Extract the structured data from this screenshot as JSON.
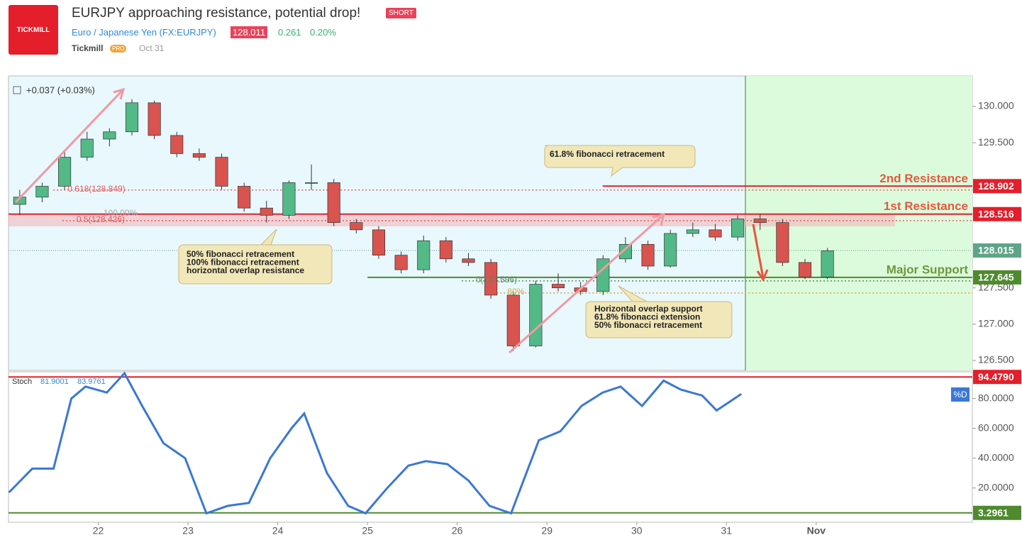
{
  "header": {
    "logo": "TICKMILL",
    "title": "EURJPY approaching resistance, potential drop!",
    "badge": "SHORT",
    "symbol": "Euro / Japanese Yen (FX:EURJPY)",
    "price": "128.011",
    "change": "0.261",
    "change_pct": "0.20%",
    "author": "Tickmill",
    "author_badge": "PRO",
    "date": "Oct 31"
  },
  "chart_data": [
    {
      "type": "candlestick",
      "legend": "+0.037 (+0.03%)",
      "x": [
        0.125,
        0.375,
        0.625,
        0.875,
        1.125,
        1.375,
        1.625,
        1.875,
        2.125,
        2.375,
        2.625,
        2.875,
        3.125,
        3.375,
        3.625,
        3.875,
        4.125,
        4.375,
        4.625,
        4.875,
        5.125,
        5.375,
        5.625,
        5.875,
        6.125,
        6.375,
        6.625,
        6.875,
        7.125,
        7.375,
        7.625,
        7.875,
        8.125,
        8.375,
        8.625,
        8.875,
        9.125
      ],
      "open": [
        128.65,
        128.75,
        128.9,
        129.3,
        129.55,
        129.65,
        130.05,
        129.6,
        129.35,
        129.3,
        128.9,
        128.6,
        128.5,
        128.95,
        128.95,
        128.4,
        128.3,
        127.95,
        127.75,
        128.15,
        127.9,
        127.85,
        127.4,
        126.7,
        127.55,
        127.5,
        127.45,
        127.9,
        128.1,
        127.8,
        128.25,
        128.3,
        128.2,
        128.45,
        128.4,
        127.85,
        127.65
      ],
      "high": [
        128.85,
        128.95,
        129.4,
        129.65,
        129.7,
        130.1,
        130.08,
        129.65,
        129.42,
        129.35,
        128.95,
        128.7,
        128.98,
        129.2,
        129.0,
        128.45,
        128.35,
        128.0,
        128.22,
        128.2,
        127.98,
        127.9,
        127.45,
        127.6,
        127.7,
        127.58,
        127.95,
        128.2,
        128.15,
        128.3,
        128.4,
        128.38,
        128.5,
        128.52,
        128.45,
        127.9,
        128.05
      ],
      "low": [
        128.5,
        128.68,
        128.85,
        129.25,
        129.45,
        129.6,
        129.55,
        129.3,
        129.25,
        128.85,
        128.55,
        128.4,
        128.45,
        128.85,
        128.35,
        128.25,
        127.9,
        127.7,
        127.7,
        127.85,
        127.8,
        127.35,
        126.63,
        126.68,
        127.45,
        127.4,
        127.4,
        127.85,
        127.75,
        127.78,
        128.2,
        128.15,
        128.15,
        128.3,
        127.8,
        127.62,
        127.62
      ],
      "close": [
        128.75,
        128.9,
        129.3,
        129.55,
        129.65,
        130.05,
        129.6,
        129.35,
        129.3,
        128.9,
        128.6,
        128.5,
        128.95,
        128.95,
        128.4,
        128.3,
        127.95,
        127.75,
        128.15,
        127.9,
        127.85,
        127.4,
        126.7,
        127.55,
        127.5,
        127.45,
        127.9,
        128.1,
        127.8,
        128.25,
        128.3,
        128.2,
        128.45,
        128.4,
        127.85,
        127.65,
        128.011
      ],
      "up_color": "#53b987",
      "down_color": "#d9534f",
      "xlim": [
        0,
        10.74
      ],
      "xticks": [
        {
          "value": 1,
          "label": "22"
        },
        {
          "value": 2,
          "label": "23"
        },
        {
          "value": 3,
          "label": "24"
        },
        {
          "value": 4,
          "label": "25"
        },
        {
          "value": 5,
          "label": "26"
        },
        {
          "value": 6,
          "label": "29"
        },
        {
          "value": 7,
          "label": "30"
        },
        {
          "value": 8,
          "label": "31"
        },
        {
          "value": 9,
          "label": "Nov"
        }
      ],
      "ylim": [
        126.363,
        130.42
      ],
      "yticks": [
        {
          "value": 126.5,
          "label": "126.500"
        },
        {
          "value": 127.0,
          "label": "127.000"
        },
        {
          "value": 127.5,
          "label": "127.500"
        },
        {
          "value": 129.5,
          "label": "129.500"
        },
        {
          "value": 130.0,
          "label": "130.000"
        }
      ],
      "levels": [
        {
          "name": "2nd Resistance",
          "value": 128.902,
          "value_label": "128.902",
          "color": "#e41e2b",
          "from": 6.62
        },
        {
          "name": "1st Resistance",
          "value": 128.516,
          "value_label": "128.516",
          "color": "#e41e2b",
          "from": 0
        },
        {
          "name": "Major Support",
          "value": 127.645,
          "value_label": "127.645",
          "color": "#4f8a2e",
          "from": 4.0
        }
      ],
      "current": {
        "value": 128.015,
        "value_label": "128.015"
      },
      "fib_levels": [
        {
          "label": "0.618(128.849)",
          "value": 128.849,
          "color": "#e45a5a",
          "from": 0.5
        },
        {
          "label": "0.5(128.426)",
          "value": 128.426,
          "color": "#e45a5a",
          "from": 0.6
        },
        {
          "label": "100.00%",
          "value": 128.516,
          "color": "#9aa",
          "from": 0.9
        },
        {
          "label": "0(127.596)",
          "value": 127.596,
          "color": "#5a8a5a",
          "from": 5.05
        },
        {
          "label": "80%",
          "value": 127.43,
          "color": "#d4a64a",
          "from": 5.4
        }
      ],
      "annotations": [
        {
          "lines": [
            "61.8% fibonacci retracement"
          ]
        },
        {
          "lines": [
            "50% fibonacci retracement",
            "100% fibonacci retracement",
            "horizontal overlap resistance"
          ]
        },
        {
          "lines": [
            "Horizontal overlap support",
            "61.8% fibonacci extension",
            "50% fibonacci retracement"
          ]
        }
      ]
    },
    {
      "type": "line",
      "name": "Stoch",
      "readings": [
        "81.9001",
        "83.9761"
      ],
      "badge": "%D",
      "color": "#3a78d4",
      "x": [
        0.005,
        0.265,
        0.502,
        0.7,
        0.858,
        1.095,
        1.292,
        1.49,
        1.727,
        1.968,
        2.205,
        2.442,
        2.679,
        2.916,
        3.153,
        3.295,
        3.548,
        3.785,
        3.978,
        4.22,
        4.455,
        4.65,
        4.89,
        5.125,
        5.36,
        5.6,
        5.91,
        6.15,
        6.385,
        6.62,
        6.82,
        7.06,
        7.3,
        7.49,
        7.73,
        7.89,
        8.165
      ],
      "values": [
        17,
        33,
        33,
        80,
        88,
        84,
        97,
        75,
        50,
        40,
        3,
        8,
        10,
        40,
        60,
        70,
        30,
        8,
        3,
        20,
        35,
        38,
        36,
        25,
        8,
        3,
        52,
        58,
        75,
        84,
        88,
        75,
        92,
        86,
        82,
        72,
        83
      ],
      "xlim": [
        0,
        10.74
      ],
      "ylim": [
        -3,
        97.9
      ],
      "yticks": [
        {
          "value": 20,
          "label": "20.0000"
        },
        {
          "value": 40,
          "label": "40.0000"
        },
        {
          "value": 60,
          "label": "60.0000"
        },
        {
          "value": 80,
          "label": "80.0000"
        }
      ],
      "levels": [
        {
          "value": 94.479,
          "value_label": "94.4790",
          "color": "#e41e2b"
        },
        {
          "value": 3.2961,
          "value_label": "3.2961",
          "color": "#4f8a2e"
        }
      ]
    }
  ]
}
